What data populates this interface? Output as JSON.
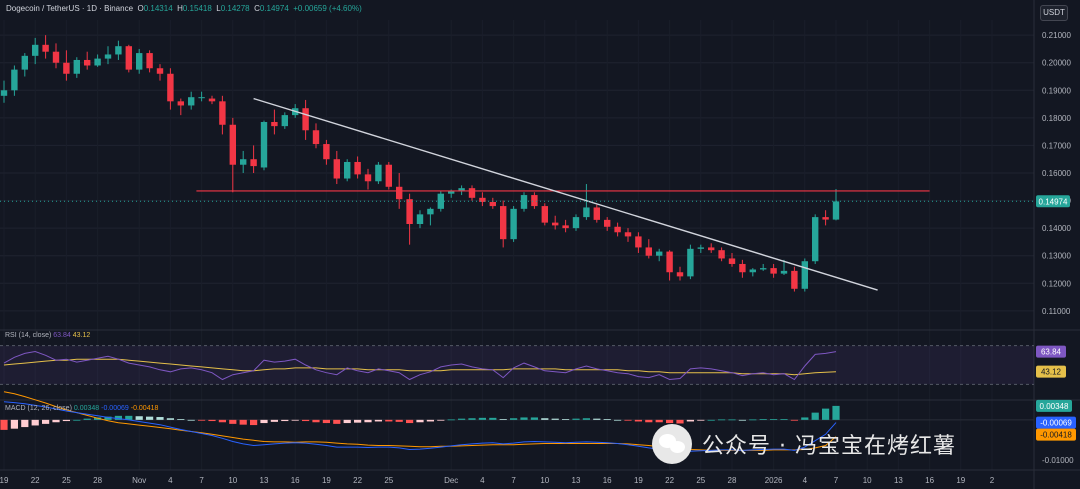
{
  "header": {
    "symbol": "Dogecoin / TetherUS · 1D · Binance",
    "o_label": "O",
    "o_value": "0.14314",
    "h_label": "H",
    "h_value": "0.15418",
    "l_label": "L",
    "l_value": "0.14278",
    "c_label": "C",
    "c_value": "0.14974",
    "change": "+0.00659 (+4.60%)"
  },
  "currency_button": "USDT",
  "watermark": "公众号 · 冯宝宝在烤红薯",
  "colors": {
    "background": "#131722",
    "up": "#26a69a",
    "down": "#f23645",
    "trendline": "#d1d4dc",
    "resistance": "#f23645",
    "rsi": "#7e57c2",
    "rsi_ma": "#e5c04a",
    "macd": "#2962ff",
    "signal": "#ff9800"
  },
  "chart_data": [
    {
      "type": "candlestick",
      "title": "Dogecoin / TetherUS · 1D · Binance",
      "y_ticks": [
        "0.21000",
        "0.20000",
        "0.19000",
        "0.18000",
        "0.17000",
        "0.16000",
        "0.15000",
        "0.14000",
        "0.13000",
        "0.12000",
        "0.11000"
      ],
      "y_tick_values": [
        0.21,
        0.2,
        0.19,
        0.18,
        0.17,
        0.16,
        0.15,
        0.14,
        0.13,
        0.12,
        0.11
      ],
      "ylim": [
        0.1045,
        0.2155
      ],
      "x_ticks": [
        "19",
        "22",
        "25",
        "28",
        "Nov",
        "4",
        "7",
        "10",
        "13",
        "16",
        "19",
        "22",
        "25",
        "Dec",
        "4",
        "7",
        "10",
        "13",
        "16",
        "19",
        "22",
        "25",
        "28",
        "2026",
        "4",
        "7",
        "10",
        "13",
        "16",
        "19",
        "2"
      ],
      "x_tick_index": [
        0,
        3,
        6,
        9,
        13,
        16,
        19,
        22,
        25,
        28,
        31,
        34,
        37,
        43,
        46,
        49,
        52,
        55,
        58,
        61,
        64,
        67,
        70,
        74,
        77,
        80,
        83,
        86,
        89,
        92,
        95
      ],
      "current_price": "0.14974",
      "current_value": 0.14974,
      "ohlc": [
        [
          0.188,
          0.1935,
          0.1855,
          0.19
        ],
        [
          0.19,
          0.199,
          0.188,
          0.1975
        ],
        [
          0.1975,
          0.2035,
          0.195,
          0.2025
        ],
        [
          0.2025,
          0.209,
          0.1995,
          0.2065
        ],
        [
          0.2065,
          0.21,
          0.2015,
          0.204
        ],
        [
          0.204,
          0.207,
          0.198,
          0.2
        ],
        [
          0.2,
          0.2045,
          0.1935,
          0.196
        ],
        [
          0.196,
          0.202,
          0.1945,
          0.201
        ],
        [
          0.201,
          0.204,
          0.1975,
          0.199
        ],
        [
          0.199,
          0.203,
          0.1985,
          0.2015
        ],
        [
          0.2015,
          0.206,
          0.1995,
          0.203
        ],
        [
          0.203,
          0.208,
          0.201,
          0.206
        ],
        [
          0.206,
          0.2065,
          0.1965,
          0.1975
        ],
        [
          0.1975,
          0.205,
          0.196,
          0.2035
        ],
        [
          0.2035,
          0.2045,
          0.1965,
          0.198
        ],
        [
          0.198,
          0.1995,
          0.1935,
          0.196
        ],
        [
          0.196,
          0.198,
          0.183,
          0.186
        ],
        [
          0.186,
          0.187,
          0.181,
          0.1845
        ],
        [
          0.1845,
          0.1895,
          0.183,
          0.1875
        ],
        [
          0.1875,
          0.1895,
          0.186,
          0.1875
        ],
        [
          0.187,
          0.188,
          0.185,
          0.186
        ],
        [
          0.186,
          0.188,
          0.174,
          0.1775
        ],
        [
          0.1775,
          0.18,
          0.153,
          0.163
        ],
        [
          0.163,
          0.168,
          0.16,
          0.165
        ],
        [
          0.165,
          0.17,
          0.16,
          0.1625
        ],
        [
          0.162,
          0.179,
          0.161,
          0.1785
        ],
        [
          0.1785,
          0.183,
          0.174,
          0.177
        ],
        [
          0.177,
          0.182,
          0.176,
          0.181
        ],
        [
          0.181,
          0.185,
          0.18,
          0.1835
        ],
        [
          0.1835,
          0.1865,
          0.172,
          0.1755
        ],
        [
          0.1755,
          0.178,
          0.169,
          0.1705
        ],
        [
          0.1705,
          0.172,
          0.163,
          0.165
        ],
        [
          0.165,
          0.168,
          0.156,
          0.158
        ],
        [
          0.158,
          0.165,
          0.157,
          0.164
        ],
        [
          0.164,
          0.166,
          0.158,
          0.1595
        ],
        [
          0.1595,
          0.1615,
          0.154,
          0.157
        ],
        [
          0.157,
          0.164,
          0.156,
          0.163
        ],
        [
          0.163,
          0.164,
          0.154,
          0.155
        ],
        [
          0.155,
          0.16,
          0.147,
          0.1505
        ],
        [
          0.1505,
          0.1525,
          0.134,
          0.1415
        ],
        [
          0.1415,
          0.1465,
          0.14,
          0.145
        ],
        [
          0.145,
          0.1475,
          0.141,
          0.147
        ],
        [
          0.147,
          0.1535,
          0.146,
          0.1525
        ],
        [
          0.1525,
          0.154,
          0.151,
          0.1535
        ],
        [
          0.1535,
          0.1555,
          0.152,
          0.1545
        ],
        [
          0.1545,
          0.1555,
          0.15,
          0.151
        ],
        [
          0.151,
          0.153,
          0.148,
          0.1495
        ],
        [
          0.1495,
          0.151,
          0.147,
          0.148
        ],
        [
          0.148,
          0.15,
          0.133,
          0.136
        ],
        [
          0.136,
          0.148,
          0.135,
          0.147
        ],
        [
          0.147,
          0.153,
          0.146,
          0.152
        ],
        [
          0.152,
          0.153,
          0.147,
          0.148
        ],
        [
          0.148,
          0.149,
          0.141,
          0.142
        ],
        [
          0.142,
          0.1445,
          0.1395,
          0.141
        ],
        [
          0.141,
          0.143,
          0.1385,
          0.14
        ],
        [
          0.14,
          0.145,
          0.139,
          0.144
        ],
        [
          0.144,
          0.156,
          0.143,
          0.1475
        ],
        [
          0.1475,
          0.1485,
          0.142,
          0.143
        ],
        [
          0.143,
          0.144,
          0.139,
          0.1405
        ],
        [
          0.1405,
          0.142,
          0.137,
          0.1385
        ],
        [
          0.1385,
          0.14,
          0.135,
          0.137
        ],
        [
          0.137,
          0.1385,
          0.131,
          0.133
        ],
        [
          0.133,
          0.136,
          0.129,
          0.13
        ],
        [
          0.13,
          0.1325,
          0.128,
          0.1315
        ],
        [
          0.1315,
          0.132,
          0.121,
          0.124
        ],
        [
          0.124,
          0.126,
          0.121,
          0.1225
        ],
        [
          0.1225,
          0.134,
          0.1215,
          0.1325
        ],
        [
          0.1325,
          0.134,
          0.131,
          0.133
        ],
        [
          0.133,
          0.1345,
          0.131,
          0.132
        ],
        [
          0.132,
          0.133,
          0.128,
          0.129
        ],
        [
          0.129,
          0.131,
          0.126,
          0.127
        ],
        [
          0.127,
          0.1285,
          0.122,
          0.124
        ],
        [
          0.124,
          0.1255,
          0.1225,
          0.125
        ],
        [
          0.125,
          0.127,
          0.1245,
          0.1255
        ],
        [
          0.1255,
          0.127,
          0.122,
          0.1235
        ],
        [
          0.1235,
          0.1285,
          0.123,
          0.1245
        ],
        [
          0.1245,
          0.126,
          0.117,
          0.118
        ],
        [
          0.118,
          0.129,
          0.117,
          0.128
        ],
        [
          0.128,
          0.145,
          0.127,
          0.144
        ],
        [
          0.144,
          0.1465,
          0.141,
          0.1431
        ],
        [
          0.1431,
          0.1542,
          0.1428,
          0.1497
        ]
      ],
      "resistance_level": 0.1535,
      "trendline": {
        "from": [
          24,
          0.187
        ],
        "to": [
          81,
          0.121
        ]
      }
    },
    {
      "type": "line",
      "title": "RSI (14, close)",
      "label_name": "RSI (14, close)",
      "rsi_value": "63.84",
      "ma_value": "43.12",
      "ylim": [
        20,
        80
      ],
      "levels": [
        70,
        30
      ],
      "rsi": [
        52,
        58,
        62,
        64,
        60,
        55,
        56,
        53,
        55,
        57,
        59,
        56,
        52,
        50,
        48,
        45,
        43,
        46,
        47,
        45,
        42,
        35,
        40,
        42,
        44,
        55,
        53,
        54,
        56,
        50,
        45,
        42,
        40,
        47,
        44,
        42,
        46,
        44,
        42,
        35,
        40,
        43,
        48,
        50,
        51,
        48,
        46,
        45,
        37,
        47,
        52,
        48,
        44,
        43,
        42,
        46,
        49,
        46,
        44,
        42,
        41,
        38,
        37,
        40,
        35,
        36,
        46,
        47,
        46,
        44,
        42,
        39,
        41,
        42,
        40,
        41,
        35,
        49,
        61,
        62,
        63.84
      ],
      "rsi_ma": [
        50,
        51,
        52,
        53,
        54,
        55,
        55,
        56,
        56,
        56,
        56,
        56,
        55,
        54,
        53,
        52,
        51,
        50,
        49,
        48,
        47,
        46,
        45,
        44,
        44,
        45,
        46,
        46,
        47,
        47,
        47,
        46,
        46,
        46,
        46,
        45,
        45,
        45,
        45,
        44,
        44,
        44,
        44,
        45,
        45,
        45,
        45,
        45,
        45,
        46,
        46,
        46,
        46,
        46,
        45,
        45,
        45,
        45,
        45,
        45,
        44,
        44,
        43,
        43,
        42,
        42,
        42,
        42,
        42,
        42,
        42,
        41,
        41,
        41,
        41,
        41,
        40,
        41,
        42,
        42.5,
        43.12
      ]
    },
    {
      "type": "bar",
      "title": "MACD (12, 26, close)",
      "label_name": "MACD (12, 26, close)",
      "hist_label": "0.00348",
      "macd_label": "-0.00069",
      "signal_label": "-0.00418",
      "y_tick": "-0.01000",
      "ylim": [
        -0.0115,
        0.0042
      ],
      "histogram": [
        -0.0025,
        -0.0022,
        -0.0018,
        -0.0014,
        -0.001,
        -0.0006,
        -0.0003,
        0.0,
        0.0003,
        0.0006,
        0.0008,
        0.001,
        0.001,
        0.0009,
        0.0008,
        0.0007,
        0.0004,
        0.0002,
        0.0,
        -0.0002,
        -0.0003,
        -0.0006,
        -0.001,
        -0.0012,
        -0.0013,
        -0.0008,
        -0.0005,
        -0.0003,
        -0.0001,
        -0.0003,
        -0.0006,
        -0.0008,
        -0.001,
        -0.0008,
        -0.0007,
        -0.0006,
        -0.0004,
        -0.0004,
        -0.0005,
        -0.0008,
        -0.0006,
        -0.0004,
        -0.0002,
        0.0001,
        0.0003,
        0.0004,
        0.0005,
        0.0005,
        0.0002,
        0.0004,
        0.0006,
        0.0006,
        0.0004,
        0.0003,
        0.0002,
        0.0003,
        0.0004,
        0.0003,
        0.0002,
        0.0,
        -0.0002,
        -0.0004,
        -0.0006,
        -0.0006,
        -0.0008,
        -0.0009,
        -0.0004,
        -0.0002,
        0.0,
        0.0001,
        0.0001,
        0.0,
        0.0001,
        0.0002,
        0.0002,
        0.0002,
        -0.0001,
        0.0006,
        0.0018,
        0.0028,
        0.00348
      ],
      "macd": [
        0.0045,
        0.0043,
        0.004,
        0.0036,
        0.0032,
        0.0027,
        0.0022,
        0.0018,
        0.0014,
        0.001,
        0.0006,
        0.0003,
        0.0,
        -0.0004,
        -0.0008,
        -0.0012,
        -0.0018,
        -0.0024,
        -0.0029,
        -0.0034,
        -0.0039,
        -0.0046,
        -0.0054,
        -0.006,
        -0.0064,
        -0.0062,
        -0.006,
        -0.0058,
        -0.0057,
        -0.0058,
        -0.0061,
        -0.0064,
        -0.0068,
        -0.0068,
        -0.0068,
        -0.0069,
        -0.0068,
        -0.0068,
        -0.007,
        -0.0074,
        -0.0073,
        -0.0071,
        -0.0068,
        -0.0065,
        -0.0062,
        -0.006,
        -0.0058,
        -0.0057,
        -0.006,
        -0.0058,
        -0.0055,
        -0.0054,
        -0.0055,
        -0.0056,
        -0.0057,
        -0.0056,
        -0.0055,
        -0.0056,
        -0.0057,
        -0.0059,
        -0.0062,
        -0.0066,
        -0.007,
        -0.0073,
        -0.0077,
        -0.008,
        -0.0078,
        -0.0077,
        -0.0076,
        -0.0075,
        -0.0075,
        -0.0076,
        -0.0075,
        -0.0074,
        -0.0073,
        -0.0073,
        -0.0076,
        -0.0068,
        -0.0052,
        -0.0036,
        -0.00069
      ],
      "signal": [
        0.007,
        0.0065,
        0.0058,
        0.005,
        0.0042,
        0.0033,
        0.0025,
        0.0018,
        0.0011,
        0.0004,
        -0.0002,
        -0.0007,
        -0.001,
        -0.0013,
        -0.0016,
        -0.0019,
        -0.0022,
        -0.0026,
        -0.0029,
        -0.0032,
        -0.0036,
        -0.004,
        -0.0044,
        -0.0048,
        -0.0051,
        -0.0054,
        -0.0055,
        -0.0055,
        -0.0056,
        -0.0055,
        -0.0055,
        -0.0056,
        -0.0058,
        -0.006,
        -0.0061,
        -0.0063,
        -0.0064,
        -0.0064,
        -0.0065,
        -0.0066,
        -0.0067,
        -0.0067,
        -0.0066,
        -0.0066,
        -0.0065,
        -0.0064,
        -0.0063,
        -0.0062,
        -0.0062,
        -0.0062,
        -0.0061,
        -0.006,
        -0.0059,
        -0.0059,
        -0.0059,
        -0.0059,
        -0.0059,
        -0.0059,
        -0.0059,
        -0.0059,
        -0.006,
        -0.0062,
        -0.0064,
        -0.0067,
        -0.0069,
        -0.0071,
        -0.0074,
        -0.0075,
        -0.0076,
        -0.0076,
        -0.0076,
        -0.0076,
        -0.0076,
        -0.0076,
        -0.0075,
        -0.0075,
        -0.0075,
        -0.0074,
        -0.007,
        -0.0064,
        -0.00418
      ]
    }
  ]
}
